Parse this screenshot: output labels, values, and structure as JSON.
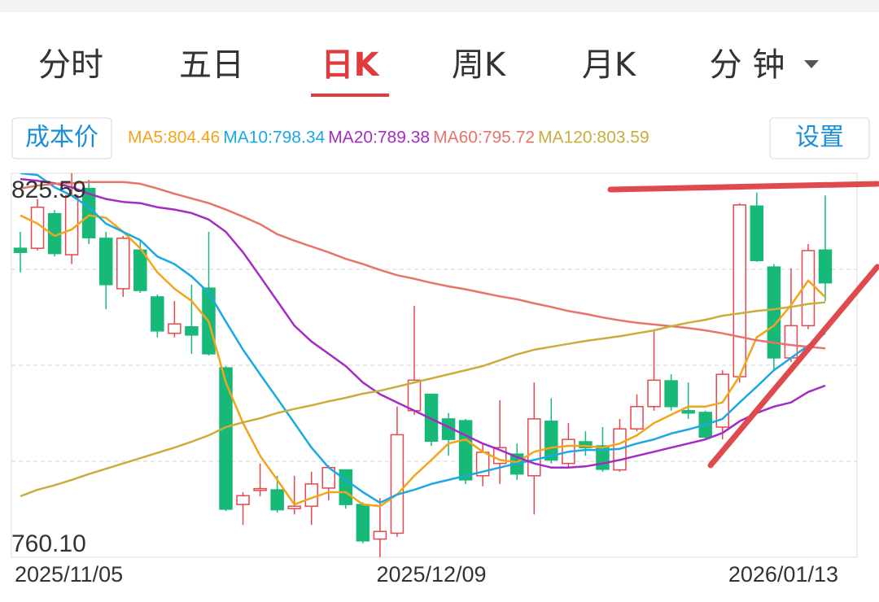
{
  "tabs": [
    "分时",
    "五日",
    "日K",
    "周K",
    "月K",
    "分 钟"
  ],
  "active_tab": 2,
  "cost_button": "成本价",
  "settings_button": "设置",
  "chart_data": {
    "type": "candlestick",
    "categories": [
      "2025/11/05",
      null,
      null,
      null,
      null,
      null,
      null,
      null,
      null,
      null,
      null,
      null,
      null,
      null,
      null,
      null,
      null,
      null,
      null,
      null,
      null,
      null,
      null,
      null,
      "2025/12/09",
      null,
      null,
      null,
      null,
      null,
      null,
      null,
      null,
      null,
      null,
      null,
      null,
      null,
      null,
      null,
      null,
      null,
      null,
      null,
      null,
      null,
      null,
      "2026/01/13"
    ],
    "open": [
      812.8,
      812.8,
      818.7,
      811.7,
      823.0,
      814.5,
      805.9,
      812.5,
      804.5,
      798.3,
      799.4,
      806.0,
      792.4,
      769.1,
      771.5,
      771.6,
      768.4,
      768.8,
      771.9,
      775.0,
      769.1,
      763.2,
      764.2,
      785.1,
      787.9,
      783.7,
      783.4,
      774.0,
      776.1,
      777.7,
      774.0,
      783.3,
      776.1,
      779.8,
      779.1,
      775.0,
      782.0,
      785.8,
      790.2,
      785.1,
      784.8,
      782.3,
      790.9,
      820.0,
      809.6,
      794.1,
      799.6,
      812.5
    ],
    "high": [
      815.6,
      821.2,
      819.3,
      825.59,
      824.5,
      815.6,
      814.9,
      814.2,
      804.9,
      803.8,
      806.6,
      815.6,
      792.7,
      771.2,
      776.1,
      774.0,
      774.0,
      774.7,
      775.8,
      775.1,
      769.5,
      770.2,
      785.8,
      803.0,
      788.0,
      784.7,
      783.7,
      779.5,
      786.9,
      779.5,
      789.9,
      787.2,
      783.0,
      781.6,
      782.3,
      783.7,
      787.9,
      799.0,
      791.3,
      789.9,
      785.1,
      792.0,
      820.5,
      822.3,
      810.1,
      809.4,
      813.5,
      821.8
    ],
    "low": [
      808.7,
      812.4,
      811.4,
      810.1,
      813.5,
      802.4,
      804.5,
      805.2,
      797.6,
      797.6,
      794.8,
      794.5,
      768.0,
      765.6,
      770.5,
      767.7,
      767.4,
      765.6,
      769.8,
      768.4,
      762.5,
      760.1,
      763.6,
      784.4,
      779.1,
      777.4,
      772.6,
      772.2,
      772.6,
      773.3,
      767.4,
      776.1,
      775.4,
      777.4,
      774.7,
      774.7,
      781.6,
      785.1,
      785.1,
      783.7,
      780.2,
      780.2,
      789.9,
      810.5,
      792.0,
      793.4,
      799.0,
      803.8
    ],
    "close": [
      812.1,
      819.8,
      811.9,
      821.8,
      814.6,
      806.6,
      814.5,
      805.6,
      798.7,
      799.9,
      798.0,
      794.8,
      768.3,
      770.6,
      771.8,
      768.2,
      768.8,
      772.6,
      775.4,
      769.1,
      762.9,
      764.5,
      781.0,
      790.3,
      779.9,
      780.2,
      773.3,
      778.0,
      778.8,
      774.3,
      783.7,
      776.7,
      780.2,
      778.8,
      775.1,
      782.0,
      785.8,
      790.3,
      785.8,
      784.7,
      780.6,
      791.3,
      820.2,
      810.7,
      794.1,
      799.6,
      812.4,
      806.9
    ],
    "up_color": "#e5484d",
    "down_color": "#17b978",
    "series": [
      {
        "name": "MA5:804.46",
        "color": "#f2a51a",
        "values": [
          818.4,
          817.0,
          814.9,
          816.0,
          818.4,
          818.0,
          815.6,
          812.8,
          808.7,
          805.9,
          803.8,
          800.3,
          789.9,
          783.0,
          777.4,
          773.3,
          769.1,
          770.2,
          771.2,
          771.2,
          769.1,
          768.8,
          770.8,
          774.0,
          776.7,
          779.5,
          780.2,
          778.1,
          776.7,
          776.3,
          778.1,
          778.8,
          779.1,
          779.1,
          778.8,
          779.5,
          780.9,
          783.0,
          784.4,
          785.8,
          785.8,
          786.5,
          791.0,
          797.6,
          799.6,
          803.1,
          807.3,
          804.46
        ]
      },
      {
        "name": "MA10:798.34",
        "color": "#1aa9e2",
        "values": [
          825.6,
          825.3,
          823.2,
          821.8,
          819.8,
          817.0,
          815.6,
          814.2,
          811.4,
          810.1,
          808.0,
          805.2,
          800.3,
          795.5,
          791.3,
          787.2,
          783.0,
          778.8,
          775.4,
          773.3,
          771.2,
          769.4,
          770.8,
          771.6,
          772.6,
          773.3,
          774.0,
          774.7,
          775.4,
          776.1,
          776.7,
          777.4,
          778.1,
          778.4,
          778.4,
          778.6,
          779.5,
          780.2,
          781.2,
          781.9,
          782.7,
          783.7,
          786.5,
          789.2,
          792.0,
          794.1,
          796.2,
          798.34
        ]
      },
      {
        "name": "MA20:789.38",
        "color": "#a32cc4",
        "values": [
          824.6,
          824.3,
          823.9,
          823.2,
          822.1,
          821.2,
          820.7,
          820.5,
          819.8,
          819.4,
          818.8,
          817.7,
          815.6,
          812.1,
          808.0,
          803.8,
          799.6,
          796.9,
          794.8,
          792.7,
          789.9,
          787.9,
          786.5,
          785.1,
          783.7,
          782.3,
          780.9,
          779.5,
          778.4,
          777.2,
          776.1,
          775.4,
          775.4,
          775.6,
          776.1,
          776.7,
          777.4,
          778.1,
          778.8,
          779.5,
          780.2,
          781.3,
          783.3,
          784.7,
          785.8,
          786.5,
          788.3,
          789.38
        ]
      },
      {
        "name": "MA60:795.72",
        "color": "#e8736b",
        "values": [
          823.0,
          823.5,
          823.8,
          823.9,
          824.1,
          824.1,
          824.1,
          823.8,
          823.0,
          822.1,
          821.3,
          820.5,
          819.4,
          818.2,
          816.9,
          815.2,
          814.1,
          813.1,
          812.1,
          811.0,
          810.1,
          809.1,
          808.2,
          807.6,
          806.9,
          806.3,
          805.8,
          805.2,
          804.6,
          804.1,
          803.4,
          802.8,
          802.1,
          801.6,
          801.0,
          800.5,
          800.1,
          799.8,
          799.5,
          799.2,
          798.8,
          798.3,
          797.7,
          797.1,
          796.7,
          796.3,
          796.0,
          795.72
        ]
      },
      {
        "name": "MA120:803.59",
        "color": "#c9ad3c",
        "values": [
          770.5,
          771.6,
          772.4,
          773.3,
          774.3,
          775.2,
          776.1,
          777.0,
          777.9,
          778.8,
          779.8,
          780.9,
          782.3,
          783.1,
          783.8,
          784.7,
          785.4,
          786.0,
          786.7,
          787.3,
          788.0,
          788.5,
          789.2,
          789.9,
          790.6,
          791.3,
          792.0,
          792.7,
          793.7,
          794.7,
          795.5,
          796.0,
          796.5,
          797.0,
          797.4,
          797.8,
          798.3,
          798.8,
          799.5,
          800.1,
          800.6,
          801.3,
          801.7,
          802.1,
          802.4,
          802.8,
          803.3,
          803.59
        ]
      }
    ],
    "ylim": [
      760.1,
      825.59
    ],
    "yticks": [
      825.59,
      {
        "value": 760.1,
        "label": "760.10"
      }
    ],
    "gridlines": [
      809.22,
      792.85,
      776.47
    ]
  }
}
